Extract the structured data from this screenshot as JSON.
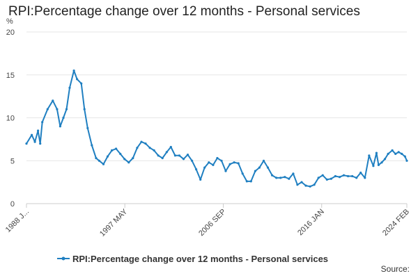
{
  "title": "RPI:Percentage change over 12 months - Personal services",
  "source": "Source:",
  "colors": {
    "series": "#1f7fc1",
    "grid": "#e6e6e6",
    "axis": "#cccccc"
  },
  "chart_data": {
    "type": "line",
    "title": "RPI:Percentage change over 12 months - Personal services",
    "ylabel": "%",
    "xlabel": "",
    "ylim": [
      0,
      20
    ],
    "yticks": [
      0,
      5,
      10,
      15,
      20
    ],
    "xlim": [
      1988.0,
      2024.08
    ],
    "xtick_labels": [
      {
        "x": 1988.0,
        "label": "1988 J..."
      },
      {
        "x": 1997.33,
        "label": "1997 MAY"
      },
      {
        "x": 2006.67,
        "label": "2006 SEP"
      },
      {
        "x": 2016.0,
        "label": "2016 JAN"
      },
      {
        "x": 2024.08,
        "label": "2024 FEB"
      }
    ],
    "grid": true,
    "legend_position": "bottom",
    "series": [
      {
        "name": "RPI:Percentage change over 12 months - Personal services",
        "x": [
          1988.0,
          1988.5,
          1988.8,
          1989.1,
          1989.3,
          1989.5,
          1990.0,
          1990.5,
          1990.9,
          1991.2,
          1991.5,
          1991.8,
          1992.1,
          1992.5,
          1992.8,
          1993.2,
          1993.5,
          1993.8,
          1994.2,
          1994.6,
          1994.9,
          1995.3,
          1995.7,
          1996.1,
          1996.5,
          1996.9,
          1997.3,
          1997.7,
          1998.1,
          1998.5,
          1998.9,
          1999.3,
          1999.7,
          2000.1,
          2000.5,
          2000.9,
          2001.3,
          2001.7,
          2002.1,
          2002.5,
          2002.9,
          2003.3,
          2003.7,
          2004.1,
          2004.5,
          2004.9,
          2005.3,
          2005.7,
          2006.1,
          2006.5,
          2006.9,
          2007.3,
          2007.7,
          2008.1,
          2008.5,
          2008.9,
          2009.3,
          2009.7,
          2010.1,
          2010.5,
          2010.9,
          2011.3,
          2011.7,
          2012.1,
          2012.5,
          2012.9,
          2013.3,
          2013.7,
          2014.1,
          2014.5,
          2014.9,
          2015.3,
          2015.7,
          2016.1,
          2016.5,
          2016.9,
          2017.3,
          2017.7,
          2018.1,
          2018.5,
          2018.9,
          2019.3,
          2019.7,
          2020.1,
          2020.5,
          2020.9,
          2021.2,
          2021.4,
          2021.7,
          2022.0,
          2022.3,
          2022.7,
          2023.0,
          2023.3,
          2023.6,
          2023.9,
          2024.08
        ],
        "y": [
          7.0,
          8.0,
          7.2,
          8.5,
          7.0,
          9.5,
          11.0,
          12.0,
          11.0,
          9.0,
          10.0,
          11.0,
          13.5,
          15.5,
          14.5,
          14.0,
          11.0,
          8.8,
          6.8,
          5.3,
          5.0,
          4.6,
          5.5,
          6.2,
          6.4,
          5.8,
          5.2,
          4.8,
          5.3,
          6.5,
          7.2,
          7.0,
          6.5,
          6.2,
          5.6,
          5.3,
          6.0,
          6.6,
          5.6,
          5.6,
          5.2,
          5.7,
          5.0,
          4.0,
          2.8,
          4.2,
          4.8,
          4.5,
          5.3,
          5.0,
          3.8,
          4.6,
          4.8,
          4.7,
          3.5,
          2.6,
          2.6,
          3.8,
          4.2,
          5.0,
          4.2,
          3.3,
          3.0,
          3.0,
          3.1,
          2.9,
          3.5,
          2.2,
          2.5,
          2.1,
          2.0,
          2.2,
          3.0,
          3.3,
          2.8,
          2.9,
          3.2,
          3.1,
          3.3,
          3.2,
          3.2,
          3.0,
          3.6,
          3.0,
          5.6,
          4.4,
          5.9,
          4.5,
          4.8,
          5.2,
          5.8,
          6.2,
          5.8,
          6.0,
          5.8,
          5.5,
          5.0
        ]
      }
    ]
  }
}
